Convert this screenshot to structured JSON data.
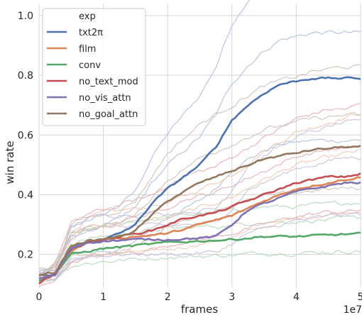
{
  "chart_data": {
    "type": "line",
    "xlabel": "frames",
    "ylabel": "win rate",
    "x_offset_text": "1e7",
    "xlim": [
      0,
      5
    ],
    "ylim": [
      0.09,
      1.04
    ],
    "xticks": [
      0,
      1,
      2,
      3,
      4,
      5
    ],
    "xtick_labels": [
      "0",
      "1",
      "2",
      "3",
      "4",
      "5"
    ],
    "yticks": [
      0.2,
      0.4,
      0.6,
      0.8,
      1.0
    ],
    "ytick_labels": [
      "0.2",
      "0.4",
      "0.6",
      "0.8",
      "1.0"
    ],
    "grid": true,
    "legend_title": "exp",
    "legend_position": "top-left",
    "series": [
      {
        "name": "txt2π",
        "color": "#4c72b0",
        "x": [
          0,
          0.25,
          0.5,
          0.75,
          1,
          1.25,
          1.5,
          1.75,
          2,
          2.25,
          2.5,
          2.75,
          3,
          3.25,
          3.5,
          3.75,
          4,
          4.25,
          4.5,
          4.75,
          5
        ],
        "y": [
          0.13,
          0.13,
          0.22,
          0.24,
          0.25,
          0.27,
          0.3,
          0.37,
          0.42,
          0.46,
          0.5,
          0.56,
          0.65,
          0.7,
          0.74,
          0.77,
          0.78,
          0.79,
          0.79,
          0.79,
          0.79
        ]
      },
      {
        "name": "film",
        "color": "#dd8452",
        "x": [
          0,
          0.25,
          0.5,
          0.75,
          1,
          1.5,
          2,
          2.5,
          3,
          3.5,
          4,
          4.5,
          5
        ],
        "y": [
          0.12,
          0.13,
          0.21,
          0.24,
          0.25,
          0.26,
          0.27,
          0.3,
          0.33,
          0.38,
          0.42,
          0.44,
          0.46
        ]
      },
      {
        "name": "conv",
        "color": "#55a868",
        "x": [
          0,
          0.25,
          0.5,
          0.75,
          1,
          1.5,
          2,
          2.5,
          3,
          3.5,
          4,
          4.5,
          5
        ],
        "y": [
          0.11,
          0.14,
          0.2,
          0.21,
          0.22,
          0.23,
          0.24,
          0.245,
          0.25,
          0.26,
          0.26,
          0.265,
          0.27
        ]
      },
      {
        "name": "no_text_mod",
        "color": "#c44e52",
        "x": [
          0,
          0.25,
          0.5,
          0.75,
          1,
          1.25,
          1.5,
          1.75,
          2,
          2.25,
          2.5,
          2.75,
          3,
          3.25,
          3.5,
          3.75,
          4,
          4.25,
          4.5,
          4.75,
          5
        ],
        "y": [
          0.1,
          0.14,
          0.22,
          0.24,
          0.25,
          0.26,
          0.27,
          0.28,
          0.3,
          0.32,
          0.33,
          0.34,
          0.36,
          0.38,
          0.4,
          0.42,
          0.44,
          0.45,
          0.46,
          0.46,
          0.47
        ]
      },
      {
        "name": "no_vis_attn",
        "color": "#8172b3",
        "x": [
          0,
          0.25,
          0.5,
          0.75,
          1,
          1.5,
          2,
          2.5,
          2.75,
          3,
          3.25,
          3.5,
          3.75,
          4,
          4.25,
          4.5,
          4.75,
          5
        ],
        "y": [
          0.12,
          0.13,
          0.22,
          0.24,
          0.245,
          0.25,
          0.25,
          0.255,
          0.26,
          0.3,
          0.35,
          0.37,
          0.39,
          0.41,
          0.42,
          0.43,
          0.44,
          0.44
        ]
      },
      {
        "name": "no_goal_attn",
        "color": "#937860",
        "x": [
          0,
          0.25,
          0.5,
          0.75,
          1,
          1.25,
          1.5,
          1.75,
          2,
          2.25,
          2.5,
          2.75,
          3,
          3.25,
          3.5,
          3.75,
          4,
          4.25,
          4.5,
          4.75,
          5
        ],
        "y": [
          0.13,
          0.14,
          0.23,
          0.245,
          0.25,
          0.26,
          0.28,
          0.33,
          0.38,
          0.41,
          0.44,
          0.46,
          0.48,
          0.5,
          0.52,
          0.53,
          0.54,
          0.55,
          0.555,
          0.56,
          0.56
        ]
      }
    ]
  }
}
